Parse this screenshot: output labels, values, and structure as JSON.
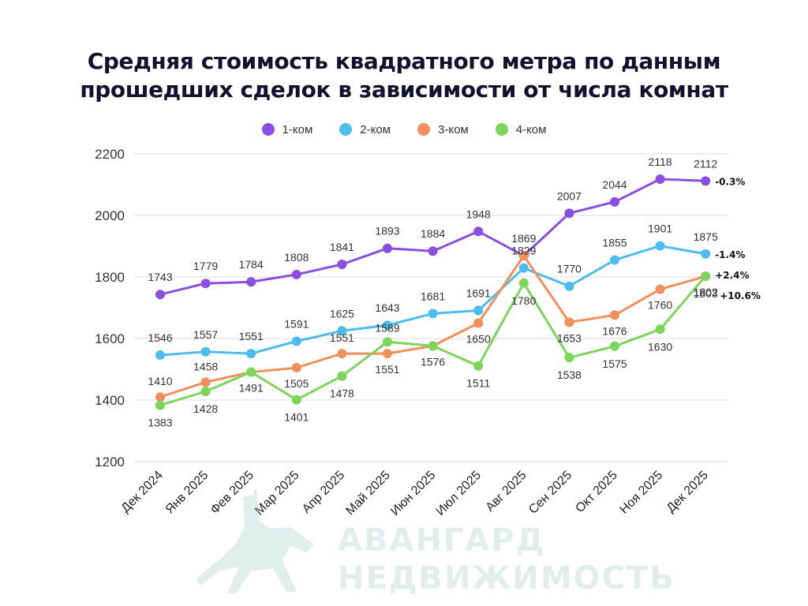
{
  "title_lines": [
    "Средняя стоимость квадратного метра по данным",
    "прошедших сделок в зависимости от числа комнат"
  ],
  "watermark": {
    "line1": "АВАНГАРД",
    "line2": "НЕДВИЖИМОСТЬ"
  },
  "chart_data": {
    "type": "line",
    "title": "Средняя стоимость квадратного метра по данным прошедших сделок в зависимости от числа комнат",
    "categories": [
      "Дек 2024",
      "Янв 2025",
      "Фев 2025",
      "Мар 2025",
      "Апр 2025",
      "Май 2025",
      "Июн 2025",
      "Июл 2025",
      "Авг 2025",
      "Сен 2025",
      "Окт 2025",
      "Ноя 2025",
      "Дек 2025"
    ],
    "ylim": [
      1200,
      2200
    ],
    "yticks": [
      1200,
      1400,
      1600,
      1800,
      2000,
      2200
    ],
    "grid": true,
    "legend_position": "top-center",
    "series": [
      {
        "name": "1-ком",
        "color": "#8a4fe0",
        "values": [
          1743,
          1779,
          1784,
          1808,
          1841,
          1893,
          1884,
          1948,
          1869,
          2007,
          2044,
          2118,
          2112
        ],
        "change": "-0.3%"
      },
      {
        "name": "2-ком",
        "color": "#4dbdf0",
        "values": [
          1546,
          1557,
          1551,
          1591,
          1625,
          1643,
          1681,
          1691,
          1829,
          1770,
          1855,
          1901,
          1875
        ],
        "change": "-1.4%"
      },
      {
        "name": "3-ком",
        "color": "#f0905a",
        "values": [
          1410,
          1458,
          1491,
          1505,
          1551,
          1551,
          1576,
          1650,
          1869,
          1653,
          1676,
          1760,
          1802
        ],
        "change": "+2.4%"
      },
      {
        "name": "4-ком",
        "color": "#7dd65c",
        "values": [
          1383,
          1428,
          1491,
          1401,
          1478,
          1589,
          1576,
          1511,
          1780,
          1538,
          1575,
          1630,
          1803
        ],
        "change": "+10.6%"
      }
    ],
    "labels_shown": [
      [
        true,
        true,
        true,
        true,
        true,
        true,
        true,
        true,
        true,
        true,
        true,
        true,
        true
      ],
      [
        true,
        true,
        true,
        true,
        true,
        true,
        true,
        true,
        true,
        true,
        true,
        true,
        true
      ],
      [
        true,
        true,
        true,
        true,
        true,
        true,
        true,
        true,
        false,
        true,
        true,
        true,
        true
      ],
      [
        true,
        true,
        false,
        true,
        true,
        true,
        false,
        true,
        true,
        true,
        true,
        true,
        true
      ]
    ]
  }
}
